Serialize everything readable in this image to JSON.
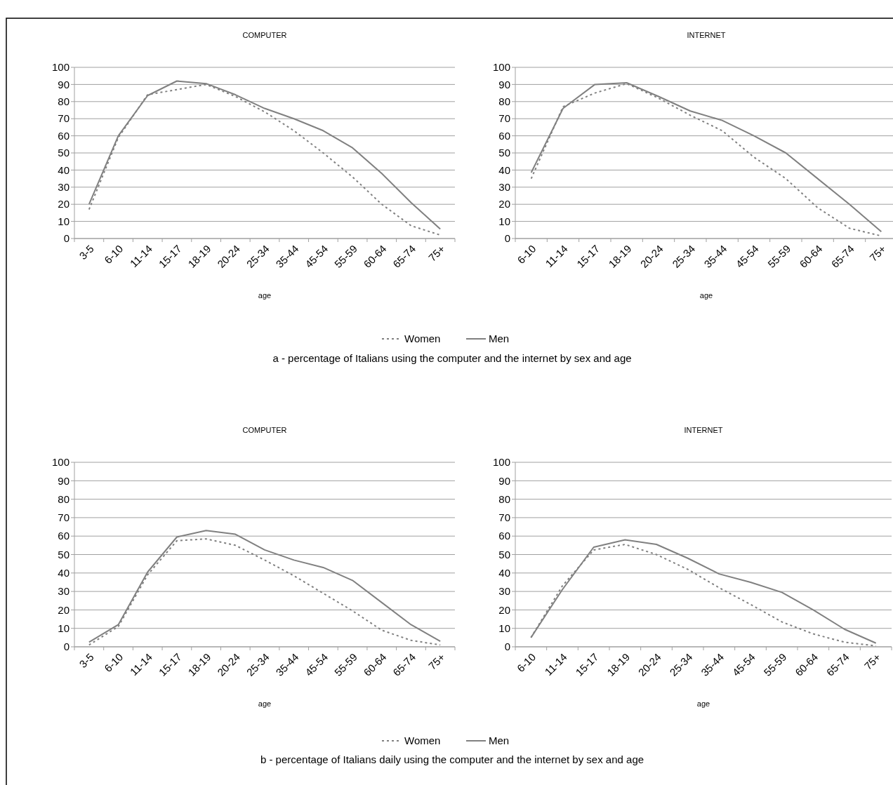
{
  "chart_data": [
    {
      "type": "line",
      "title": "COMPUTER",
      "xlabel": "age",
      "categories": [
        "3-5",
        "6-10",
        "11-14",
        "15-17",
        "18-19",
        "20-24",
        "25-34",
        "35-44",
        "45-54",
        "55-59",
        "60-64",
        "65-74",
        "75+"
      ],
      "series": [
        {
          "name": "Women",
          "color": "#808080",
          "line_style": "dotted",
          "values": [
            17,
            59,
            84,
            87,
            90,
            83,
            74,
            63,
            50,
            36,
            20,
            7.5,
            2
          ]
        },
        {
          "name": "Men",
          "color": "#808080",
          "line_style": "solid",
          "values": [
            20,
            60,
            83.5,
            92,
            90.5,
            84,
            76,
            70,
            63,
            53,
            38,
            21,
            5.5
          ]
        }
      ],
      "ylim": [
        0,
        100
      ],
      "yticks": [
        0,
        10,
        20,
        30,
        40,
        50,
        60,
        70,
        80,
        90,
        100
      ],
      "grid": "y",
      "legend": "bottom",
      "annotations": [
        "a - percentage of Italians using the computer and the internet by sex and age"
      ]
    },
    {
      "type": "line",
      "title": "INTERNET",
      "xlabel": "age",
      "categories": [
        "6-10",
        "11-14",
        "15-17",
        "18-19",
        "20-24",
        "25-34",
        "35-44",
        "45-54",
        "55-59",
        "60-64",
        "65-74",
        "75+"
      ],
      "series": [
        {
          "color": "#808080",
          "line_style": "dotted",
          "values": [
            35,
            77,
            85,
            90.5,
            82,
            72,
            63,
            47.5,
            35,
            18,
            6,
            1.5
          ]
        },
        {
          "color": "#808080",
          "line_style": "solid",
          "values": [
            38.5,
            76,
            90,
            91,
            83,
            74.5,
            69,
            60,
            50,
            35,
            20,
            4
          ]
        }
      ],
      "ylim": [
        0,
        100
      ],
      "yticks": [
        0,
        10,
        20,
        30,
        40,
        50,
        60,
        70,
        80,
        90,
        100
      ],
      "grid": "y"
    },
    {
      "type": "line",
      "title": "COMPUTER",
      "xlabel": "age",
      "categories": [
        "3-5",
        "6-10",
        "11-14",
        "15-17",
        "18-19",
        "20-24",
        "25-34",
        "35-44",
        "45-54",
        "55-59",
        "60-64",
        "65-74",
        "75+"
      ],
      "series": [
        {
          "name": "Women",
          "color": "#808080",
          "line_style": "dotted",
          "values": [
            1,
            11,
            39,
            57.5,
            58.5,
            55,
            47,
            38.5,
            29,
            19.5,
            9,
            3.5,
            1
          ]
        },
        {
          "name": "Men",
          "color": "#808080",
          "line_style": "solid",
          "values": [
            2.5,
            12,
            40.5,
            59.5,
            63,
            61,
            52.5,
            47,
            43,
            36,
            24,
            12,
            3
          ]
        }
      ],
      "ylim": [
        0,
        100
      ],
      "yticks": [
        0,
        10,
        20,
        30,
        40,
        50,
        60,
        70,
        80,
        90,
        100
      ],
      "grid": "y",
      "legend": "bottom",
      "annotations": [
        "b - percentage of Italians daily using the computer and the internet by sex and age"
      ]
    },
    {
      "type": "line",
      "title": "INTERNET",
      "xlabel": "age",
      "categories": [
        "6-10",
        "11-14",
        "15-17",
        "18-19",
        "20-24",
        "25-34",
        "35-44",
        "45-54",
        "55-59",
        "60-64",
        "65-74",
        "75+"
      ],
      "series": [
        {
          "color": "#808080",
          "line_style": "dotted",
          "values": [
            5,
            33,
            52.5,
            55.5,
            50,
            42,
            32,
            23,
            13.5,
            7,
            2.5,
            0.5
          ]
        },
        {
          "color": "#808080",
          "line_style": "solid",
          "values": [
            5,
            31,
            54,
            58,
            55.5,
            48,
            39.5,
            35,
            29.5,
            20,
            9.5,
            2
          ]
        }
      ],
      "ylim": [
        0,
        100
      ],
      "yticks": [
        0,
        10,
        20,
        30,
        40,
        50,
        60,
        70,
        80,
        90,
        100
      ],
      "grid": "y"
    }
  ]
}
